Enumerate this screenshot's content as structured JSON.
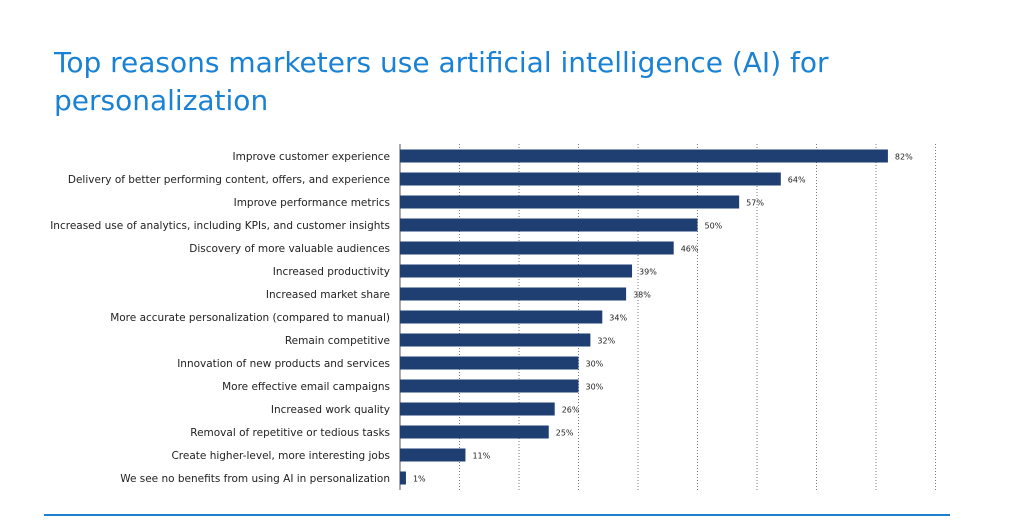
{
  "chart_data": {
    "type": "bar",
    "orientation": "horizontal",
    "title": "Top  reasons marketers use artificial intelligence (AI) for personalization",
    "categories": [
      "Improve customer experience",
      "Delivery of better performing content, offers, and experience",
      "Improve performance metrics",
      "Increased use of analytics, including KPIs, and customer insights",
      "Discovery of more valuable audiences",
      "Increased productivity",
      "Increased market share",
      "More accurate personalization (compared to manual)",
      "Remain competitive",
      "Innovation of new products and services",
      "More effective email campaigns",
      "Increased work quality",
      "Removal of repetitive or tedious tasks",
      "Create higher-level, more interesting jobs",
      "We see no benefits from using AI in personalization"
    ],
    "values": [
      82,
      64,
      57,
      50,
      46,
      39,
      38,
      34,
      32,
      30,
      30,
      26,
      25,
      11,
      1
    ],
    "value_labels": [
      "82%",
      "64%",
      "57%",
      "50%",
      "46%",
      "39%",
      "38%",
      "34%",
      "32%",
      "30%",
      "30%",
      "26%",
      "25%",
      "11%",
      "1%"
    ],
    "xlim": [
      0,
      90
    ],
    "grid": true,
    "grid_style": "dotted vertical",
    "bar_color": "#1f3f73",
    "title_color": "#1a82d4",
    "rule_color": "#1f7fd0"
  }
}
